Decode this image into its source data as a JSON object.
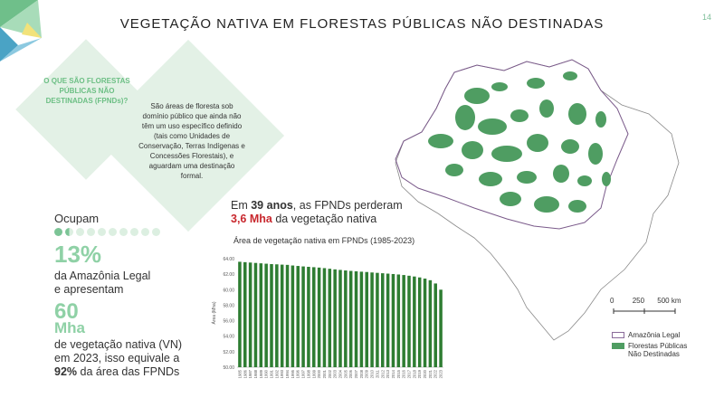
{
  "page": {
    "number": "14",
    "title": "VEGETAÇÃO NATIVA EM FLORESTAS PÚBLICAS NÃO DESTINADAS"
  },
  "info": {
    "question": "O QUE SÃO FLORESTAS PÚBLICAS NÃO DESTINADAS (FPNDs)?",
    "answer": "São áreas de floresta sob domínio público que ainda não têm um uso específico definido (tais como Unidades de Conservação, Terras Indígenas e Concessões Florestais), e aguardam uma destinação formal."
  },
  "stats": {
    "ocupam_label": "Ocupam",
    "percent": "13%",
    "percent_text_1": "da Amazônia Legal",
    "percent_text_2": "e apresentam",
    "mha_value": "60",
    "mha_unit": "Mha",
    "vn_text_1": "de vegetação nativa (VN)",
    "vn_text_2": "em 2023, isso equivale a",
    "vn_pct": "92%",
    "vn_text_3": " da área das FPNDs",
    "dots_fill": 1.5,
    "dots_total": 10
  },
  "headline": {
    "part1": "Em ",
    "years": "39 anos",
    "part2": ", as FPNDs perderam",
    "loss": "3,6 Mha",
    "part3": " da vegetação nativa"
  },
  "colors": {
    "accent_green": "#8fd1a6",
    "bar_green": "#2e7d32",
    "map_green": "#4f9d62",
    "loss_red": "#c8272d"
  },
  "chart_data": {
    "type": "bar",
    "title": "Área de vegetação nativa em FPNDs (1985-2023)",
    "ylabel": "Área (Mha)",
    "ylim": [
      50,
      64
    ],
    "yticks": [
      "50.00",
      "52.00",
      "54.00",
      "56.00",
      "58.00",
      "60.00",
      "62.00",
      "64.00"
    ],
    "categories": [
      "1985",
      "1986",
      "1987",
      "1988",
      "1989",
      "1990",
      "1991",
      "1992",
      "1993",
      "1994",
      "1995",
      "1996",
      "1997",
      "1998",
      "1999",
      "2000",
      "2001",
      "2002",
      "2003",
      "2004",
      "2005",
      "2006",
      "2007",
      "2008",
      "2009",
      "2010",
      "2011",
      "2012",
      "2013",
      "2014",
      "2015",
      "2016",
      "2017",
      "2018",
      "2019",
      "2020",
      "2021",
      "2022",
      "2023"
    ],
    "values": [
      63.6,
      63.55,
      63.5,
      63.45,
      63.4,
      63.35,
      63.3,
      63.27,
      63.23,
      63.2,
      63.12,
      63.06,
      63.0,
      62.95,
      62.9,
      62.85,
      62.78,
      62.7,
      62.62,
      62.55,
      62.48,
      62.42,
      62.37,
      62.32,
      62.28,
      62.22,
      62.17,
      62.12,
      62.07,
      62.02,
      61.96,
      61.89,
      61.8,
      61.7,
      61.58,
      61.43,
      61.22,
      60.8,
      60.0
    ]
  },
  "map": {
    "scale_labels": [
      "0",
      "250",
      "500 km"
    ],
    "legend": [
      {
        "label": "Amazônia Legal",
        "swatch": "outline"
      },
      {
        "label": "Florestas Públicas Não Destinadas",
        "swatch": "green"
      }
    ]
  }
}
